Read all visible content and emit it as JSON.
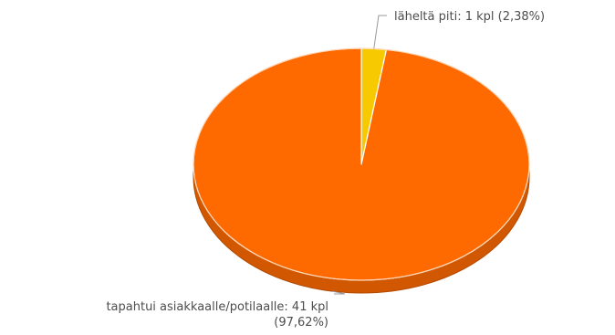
{
  "chart_data": {
    "type": "pie",
    "style": "3d",
    "title": "",
    "slices": [
      {
        "label": "läheltä piti",
        "value": 1,
        "percent": 2.38,
        "color": "#f7c900",
        "label_text": "läheltä piti: 1 kpl (2,38%)",
        "label_lines": [
          "läheltä piti: 1 kpl (2,38%)"
        ]
      },
      {
        "label": "tapahtui asiakkaalle/potilaalle",
        "value": 41,
        "percent": 97.62,
        "color": "#ff6a00",
        "label_text": "tapahtui asiakkaalle/potilaalle: 41 kpl (97,62%)",
        "label_lines": [
          "tapahtui asiakkaalle/potilaalle: 41 kpl",
          "(97,62%)"
        ]
      }
    ],
    "legend": "none"
  }
}
